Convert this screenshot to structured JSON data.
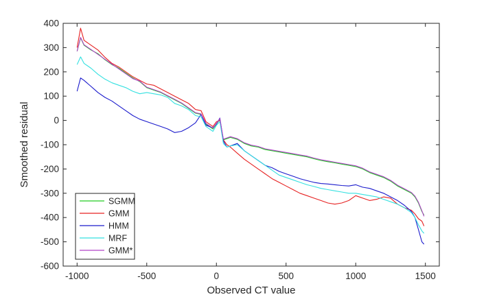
{
  "chart_data": {
    "type": "line",
    "title": "",
    "xlabel": "Observed CT value",
    "ylabel": "Smoothed residual",
    "xlim": [
      -1100,
      1600
    ],
    "ylim": [
      -600,
      400
    ],
    "xticks": [
      -1000,
      -500,
      0,
      500,
      1000,
      1500
    ],
    "yticks": [
      -600,
      -500,
      -400,
      -300,
      -200,
      -100,
      0,
      100,
      200,
      300,
      400
    ],
    "xtick_labels": [
      "-1000",
      "-500",
      "0",
      "500",
      "1000",
      "1500"
    ],
    "ytick_labels": [
      "-600",
      "-500",
      "-400",
      "-300",
      "-200",
      "-100",
      "0",
      "100",
      "200",
      "300",
      "400"
    ],
    "grid": false,
    "legend_position": "bottom-left",
    "x": [
      -1000,
      -975,
      -950,
      -900,
      -850,
      -800,
      -750,
      -700,
      -650,
      -600,
      -550,
      -500,
      -450,
      -400,
      -350,
      -300,
      -250,
      -200,
      -150,
      -110,
      -75,
      -25,
      0,
      25,
      50,
      75,
      100,
      150,
      200,
      250,
      300,
      350,
      400,
      450,
      500,
      550,
      600,
      650,
      700,
      750,
      800,
      850,
      900,
      950,
      1000,
      1050,
      1100,
      1150,
      1200,
      1250,
      1300,
      1350,
      1400,
      1425,
      1450,
      1475,
      1490
    ],
    "series": [
      {
        "name": "SGMM",
        "color": "#22cc22",
        "values": [
          285,
          340,
          310,
          290,
          275,
          250,
          230,
          215,
          195,
          175,
          160,
          135,
          125,
          115,
          100,
          85,
          70,
          50,
          30,
          25,
          -15,
          -35,
          -15,
          5,
          -80,
          -75,
          -70,
          -78,
          -95,
          -105,
          -110,
          -120,
          -125,
          -130,
          -135,
          -140,
          -145,
          -150,
          -158,
          -165,
          -170,
          -175,
          -180,
          -185,
          -190,
          -200,
          -215,
          -225,
          -235,
          -250,
          -270,
          -285,
          -300,
          -315,
          -340,
          -375,
          -390
        ]
      },
      {
        "name": "GMM",
        "color": "#e62020",
        "values": [
          300,
          380,
          330,
          310,
          290,
          260,
          235,
          220,
          200,
          180,
          165,
          150,
          145,
          130,
          115,
          100,
          85,
          70,
          45,
          40,
          -5,
          -25,
          -5,
          0,
          -80,
          -100,
          -110,
          -135,
          -160,
          -180,
          -200,
          -220,
          -240,
          -255,
          -270,
          -285,
          -300,
          -310,
          -320,
          -330,
          -340,
          -345,
          -340,
          -330,
          -310,
          -320,
          -330,
          -325,
          -315,
          -320,
          -345,
          -360,
          -370,
          -385,
          -405,
          -415,
          -435
        ]
      },
      {
        "name": "HMM",
        "color": "#1a1acc",
        "values": [
          120,
          175,
          165,
          140,
          115,
          95,
          80,
          60,
          40,
          20,
          5,
          -5,
          -15,
          -25,
          -35,
          -50,
          -45,
          -30,
          -10,
          25,
          -20,
          -30,
          -15,
          10,
          -85,
          -110,
          -105,
          -95,
          -125,
          -145,
          -165,
          -185,
          -195,
          -210,
          -220,
          -230,
          -240,
          -248,
          -255,
          -260,
          -262,
          -265,
          -268,
          -270,
          -265,
          -275,
          -280,
          -290,
          -300,
          -315,
          -330,
          -350,
          -375,
          -400,
          -450,
          -500,
          -510
        ]
      },
      {
        "name": "MRF",
        "color": "#33e0e0",
        "values": [
          230,
          262,
          235,
          215,
          190,
          170,
          155,
          145,
          135,
          120,
          110,
          115,
          110,
          105,
          95,
          70,
          60,
          45,
          20,
          15,
          -25,
          -45,
          -20,
          -5,
          -95,
          -110,
          -105,
          -100,
          -125,
          -145,
          -165,
          -185,
          -205,
          -225,
          -235,
          -245,
          -255,
          -265,
          -272,
          -280,
          -285,
          -290,
          -295,
          -300,
          -300,
          -305,
          -310,
          -315,
          -325,
          -335,
          -345,
          -360,
          -380,
          -400,
          -430,
          -455,
          -465
        ]
      },
      {
        "name": "GMM*",
        "color": "#b040c8",
        "values": [
          285,
          342,
          312,
          292,
          272,
          252,
          232,
          212,
          192,
          172,
          162,
          137,
          127,
          117,
          102,
          87,
          72,
          52,
          32,
          27,
          -12,
          -32,
          -12,
          8,
          -77,
          -72,
          -67,
          -75,
          -92,
          -102,
          -107,
          -117,
          -122,
          -127,
          -132,
          -137,
          -142,
          -147,
          -155,
          -162,
          -167,
          -172,
          -177,
          -182,
          -187,
          -197,
          -212,
          -222,
          -232,
          -247,
          -267,
          -282,
          -297,
          -312,
          -337,
          -372,
          -395
        ]
      }
    ]
  }
}
